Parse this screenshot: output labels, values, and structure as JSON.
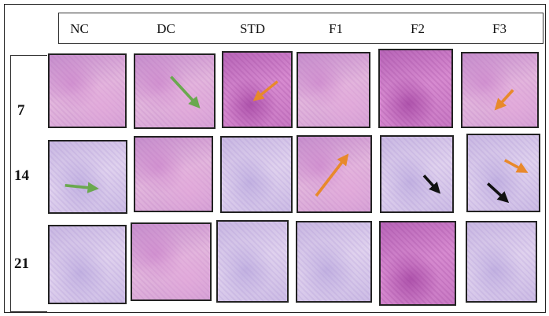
{
  "columns": [
    "NC",
    "DC",
    "STD",
    "F1",
    "F2",
    "F3"
  ],
  "rows": [
    "7",
    "14",
    "21"
  ],
  "arrow_colors": {
    "green": "#6aa84f",
    "orange": "#e8892b",
    "black": "#111111"
  },
  "arrows": [
    {
      "row": "7",
      "column": "DC",
      "color": "green"
    },
    {
      "row": "7",
      "column": "STD",
      "color": "orange"
    },
    {
      "row": "7",
      "column": "F3",
      "color": "orange"
    },
    {
      "row": "14",
      "column": "NC",
      "color": "green"
    },
    {
      "row": "14",
      "column": "F1",
      "color": "orange"
    },
    {
      "row": "14",
      "column": "F2",
      "color": "black"
    },
    {
      "row": "14",
      "column": "F3",
      "color": "orange"
    },
    {
      "row": "14",
      "column": "F3",
      "color": "black"
    }
  ]
}
